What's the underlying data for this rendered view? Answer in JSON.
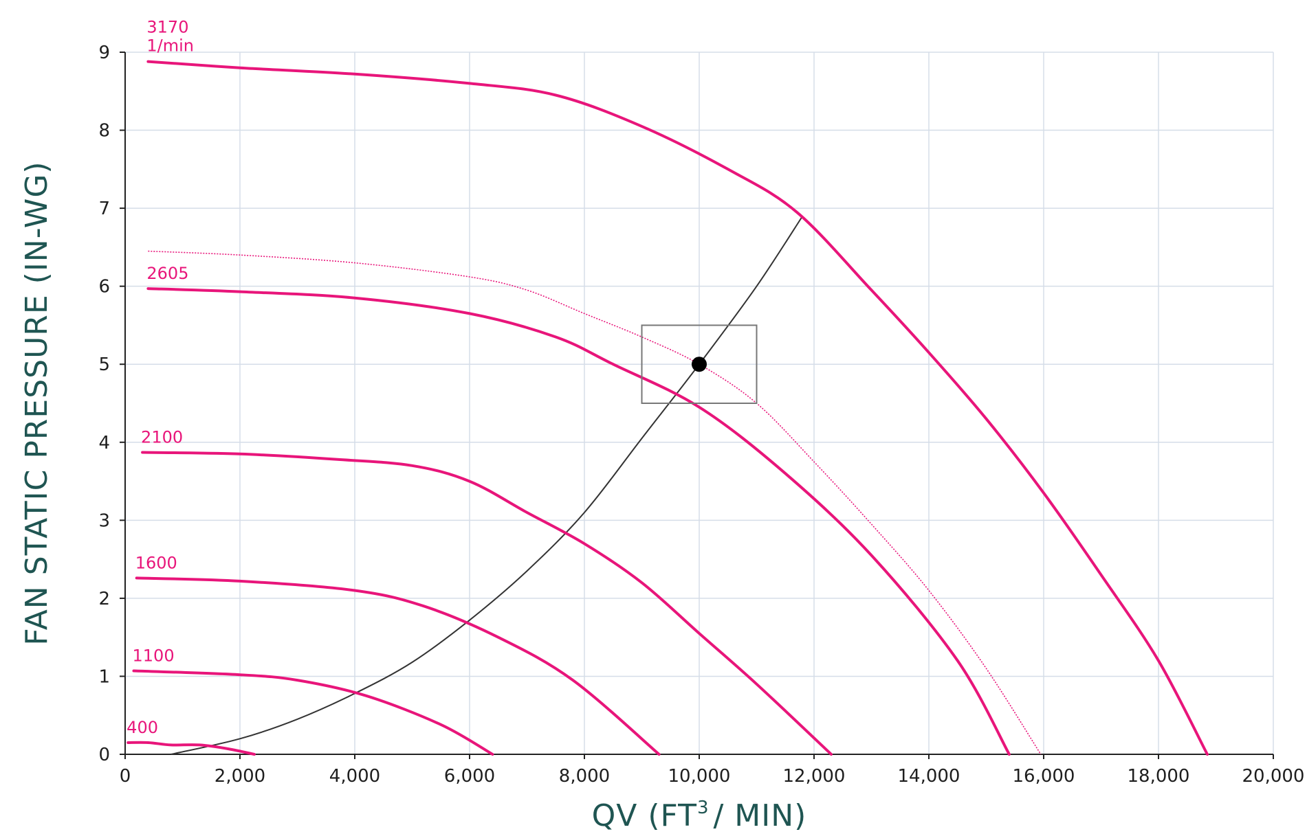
{
  "chart_data": {
    "type": "line",
    "xlabel_main": "QV (FT",
    "xlabel_sup": "3",
    "xlabel_tail": "/ MIN)",
    "ylabel": "FAN STATIC PRESSURE (IN-WG)",
    "xlim": [
      0,
      20000
    ],
    "ylim": [
      0,
      9
    ],
    "x_ticks": [
      0,
      2000,
      4000,
      6000,
      8000,
      10000,
      12000,
      14000,
      16000,
      18000,
      20000
    ],
    "x_tick_labels": [
      "0",
      "2,000",
      "4,000",
      "6,000",
      "8,000",
      "10,000",
      "12,000",
      "14,000",
      "16,000",
      "18,000",
      "20,000"
    ],
    "y_ticks": [
      0,
      1,
      2,
      3,
      4,
      5,
      6,
      7,
      8,
      9
    ],
    "y_tick_labels": [
      "0",
      "1",
      "2",
      "3",
      "4",
      "5",
      "6",
      "7",
      "8",
      "9"
    ],
    "grid": true,
    "colors": {
      "fan_curve": "#e8157a",
      "system_curve": "#333333",
      "grid": "#d5dde8",
      "axis_title": "#1f5552"
    },
    "series": [
      {
        "name": "3170",
        "unit": "1/min",
        "points": [
          [
            400,
            8.88
          ],
          [
            2000,
            8.8
          ],
          [
            4000,
            8.72
          ],
          [
            6000,
            8.6
          ],
          [
            7500,
            8.45
          ],
          [
            9000,
            8.05
          ],
          [
            10500,
            7.5
          ],
          [
            11700,
            6.95
          ],
          [
            13000,
            5.95
          ],
          [
            14000,
            5.15
          ],
          [
            15000,
            4.3
          ],
          [
            16000,
            3.35
          ],
          [
            17000,
            2.3
          ],
          [
            18000,
            1.2
          ],
          [
            18850,
            0
          ]
        ]
      },
      {
        "name": "2605",
        "points": [
          [
            400,
            5.97
          ],
          [
            2000,
            5.93
          ],
          [
            4000,
            5.85
          ],
          [
            6000,
            5.65
          ],
          [
            7500,
            5.35
          ],
          [
            8500,
            5.0
          ],
          [
            10000,
            4.45
          ],
          [
            11500,
            3.6
          ],
          [
            13000,
            2.55
          ],
          [
            14500,
            1.2
          ],
          [
            15400,
            0
          ]
        ]
      },
      {
        "name": "2100",
        "points": [
          [
            300,
            3.87
          ],
          [
            2000,
            3.85
          ],
          [
            3700,
            3.78
          ],
          [
            5000,
            3.7
          ],
          [
            6000,
            3.5
          ],
          [
            7000,
            3.1
          ],
          [
            8000,
            2.7
          ],
          [
            9000,
            2.2
          ],
          [
            10000,
            1.55
          ],
          [
            11000,
            0.9
          ],
          [
            12300,
            0
          ]
        ]
      },
      {
        "name": "1600",
        "points": [
          [
            200,
            2.26
          ],
          [
            2000,
            2.22
          ],
          [
            4000,
            2.1
          ],
          [
            5200,
            1.9
          ],
          [
            6500,
            1.5
          ],
          [
            7800,
            0.95
          ],
          [
            9300,
            0
          ]
        ]
      },
      {
        "name": "1100",
        "points": [
          [
            150,
            1.07
          ],
          [
            2000,
            1.02
          ],
          [
            3000,
            0.95
          ],
          [
            4200,
            0.75
          ],
          [
            5500,
            0.38
          ],
          [
            6400,
            0
          ]
        ]
      },
      {
        "name": "400",
        "points": [
          [
            50,
            0.15
          ],
          [
            400,
            0.15
          ],
          [
            800,
            0.12
          ],
          [
            1300,
            0.12
          ],
          [
            1800,
            0.07
          ],
          [
            2250,
            0
          ]
        ]
      }
    ],
    "dotted_curve": {
      "points": [
        [
          400,
          6.45
        ],
        [
          2000,
          6.4
        ],
        [
          4000,
          6.3
        ],
        [
          6000,
          6.12
        ],
        [
          7000,
          5.95
        ],
        [
          8000,
          5.65
        ],
        [
          9000,
          5.35
        ],
        [
          10000,
          5.0
        ],
        [
          11000,
          4.5
        ],
        [
          12000,
          3.75
        ],
        [
          13000,
          2.95
        ],
        [
          14000,
          2.1
        ],
        [
          15000,
          1.1
        ],
        [
          15950,
          0
        ]
      ]
    },
    "system_curve": {
      "points": [
        [
          800,
          0
        ],
        [
          2000,
          0.2
        ],
        [
          3000,
          0.45
        ],
        [
          4000,
          0.78
        ],
        [
          5000,
          1.18
        ],
        [
          6000,
          1.72
        ],
        [
          7000,
          2.35
        ],
        [
          8000,
          3.1
        ],
        [
          9000,
          4.05
        ],
        [
          10000,
          5.0
        ],
        [
          11000,
          6.0
        ],
        [
          11800,
          6.9
        ]
      ]
    },
    "operating_point": {
      "x": 10000,
      "y": 5.0
    },
    "selection_box": {
      "x": [
        9000,
        11000
      ],
      "y": [
        4.5,
        5.5
      ]
    }
  }
}
